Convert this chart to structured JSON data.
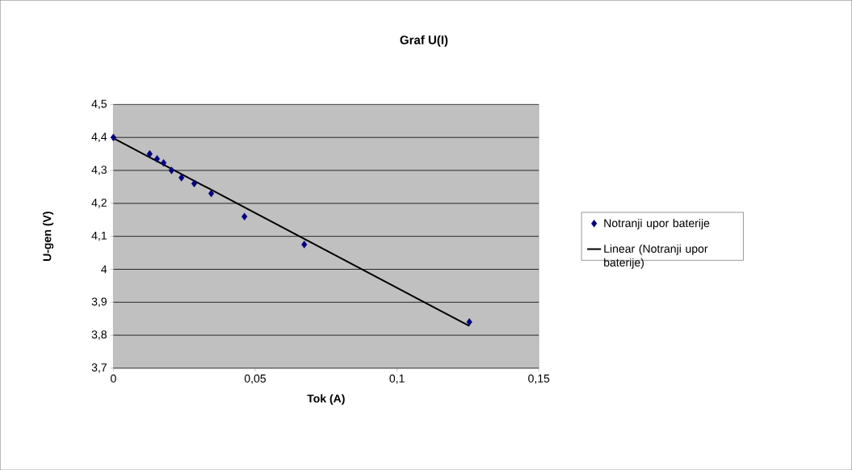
{
  "chart_data": {
    "type": "scatter",
    "title": "Graf U(I)",
    "xlabel": "Tok (A)",
    "ylabel": "U-gen (V)",
    "series": [
      {
        "name": "Notranji upor baterije",
        "color": "#000080",
        "marker": "diamond",
        "x": [
          0,
          0.0128,
          0.0154,
          0.0177,
          0.0205,
          0.024,
          0.0285,
          0.0345,
          0.0462,
          0.0673,
          0.1255
        ],
        "values": [
          4.4,
          4.35,
          4.335,
          4.323,
          4.3,
          4.278,
          4.26,
          4.23,
          4.16,
          4.075,
          3.84
        ]
      },
      {
        "name": "Linear (Notranji upor baterije)",
        "type": "line",
        "color": "#000000",
        "marker": "none",
        "x": [
          0,
          0.1255
        ],
        "values": [
          4.398,
          3.828
        ]
      }
    ],
    "xlim": [
      0,
      0.15
    ],
    "xticks": [
      {
        "value": 0,
        "label": "0"
      },
      {
        "value": 0.05,
        "label": "0,05"
      },
      {
        "value": 0.1,
        "label": "0,1"
      },
      {
        "value": 0.15,
        "label": "0,15"
      }
    ],
    "ylim": [
      3.7,
      4.5
    ],
    "yticks": [
      {
        "value": 3.7,
        "label": "3,7"
      },
      {
        "value": 3.8,
        "label": "3,8"
      },
      {
        "value": 3.9,
        "label": "3,9"
      },
      {
        "value": 4,
        "label": "4"
      },
      {
        "value": 4.1,
        "label": "4,1"
      },
      {
        "value": 4.2,
        "label": "4,2"
      },
      {
        "value": 4.3,
        "label": "4,3"
      },
      {
        "value": 4.4,
        "label": "4,4"
      },
      {
        "value": 4.5,
        "label": "4,5"
      }
    ],
    "grid": "y",
    "legend": "right"
  }
}
